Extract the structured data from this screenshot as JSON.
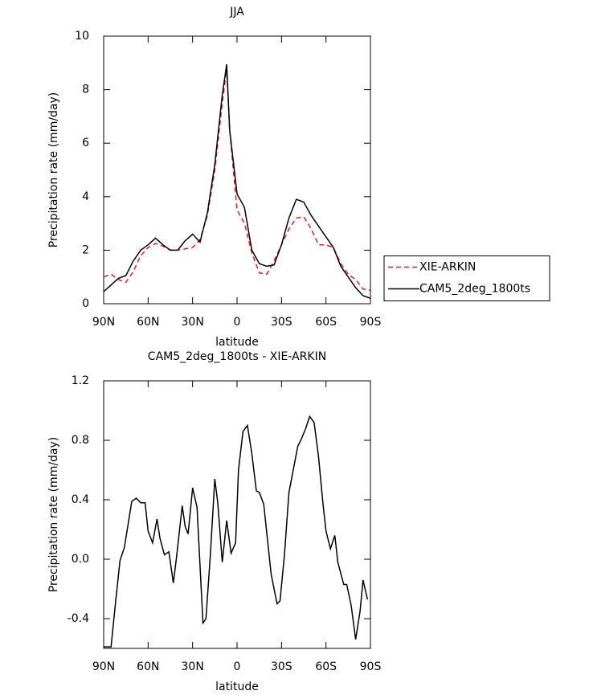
{
  "chart_data": [
    {
      "type": "line",
      "title": "JJA",
      "xlabel": "latitude",
      "ylabel": "Precipitation rate (mm/day)",
      "x": [
        90,
        85,
        80,
        75,
        70,
        65,
        60,
        55,
        50,
        45,
        40,
        35,
        30,
        25,
        20,
        15,
        10,
        7,
        5,
        0,
        -5,
        -10,
        -15,
        -20,
        -25,
        -30,
        -35,
        -40,
        -45,
        -50,
        -55,
        -60,
        -65,
        -70,
        -75,
        -80,
        -85,
        -90
      ],
      "series": [
        {
          "name": "XIE-ARKIN",
          "color": "#e41a1c",
          "dash": "dashed",
          "values": [
            1.0,
            1.1,
            0.9,
            0.8,
            1.2,
            1.8,
            2.1,
            2.25,
            2.15,
            2.0,
            2.0,
            2.05,
            2.1,
            2.4,
            3.3,
            5.0,
            7.5,
            8.8,
            6.5,
            3.5,
            3.0,
            1.9,
            1.15,
            1.1,
            1.6,
            2.2,
            2.8,
            3.2,
            3.25,
            2.8,
            2.2,
            2.2,
            2.1,
            1.5,
            1.1,
            0.9,
            0.55,
            0.5
          ]
        },
        {
          "name": "CAM5_2deg_1800ts",
          "color": "#000000",
          "dash": "solid",
          "values": [
            0.45,
            0.7,
            0.95,
            1.05,
            1.6,
            2.0,
            2.2,
            2.45,
            2.2,
            2.0,
            2.0,
            2.35,
            2.6,
            2.3,
            3.4,
            5.2,
            7.8,
            8.95,
            6.5,
            4.1,
            3.6,
            2.0,
            1.5,
            1.4,
            1.45,
            2.2,
            3.2,
            3.9,
            3.8,
            3.3,
            2.9,
            2.5,
            2.1,
            1.4,
            1.0,
            0.6,
            0.3,
            0.2
          ]
        }
      ],
      "xlim": [
        90,
        -90
      ],
      "xticks": [
        {
          "value": 90,
          "label": "90N"
        },
        {
          "value": 60,
          "label": "60N"
        },
        {
          "value": 30,
          "label": "30N"
        },
        0,
        {
          "value": -30,
          "label": "30S"
        },
        {
          "value": -60,
          "label": "60S"
        },
        {
          "value": -90,
          "label": "90S"
        }
      ],
      "ylim": [
        0,
        10
      ],
      "yticks": [
        0,
        2,
        4,
        6,
        8,
        10
      ],
      "legend": "right"
    },
    {
      "type": "line",
      "title": "CAM5_2deg_1800ts - XIE-ARKIN",
      "xlabel": "latitude",
      "ylabel": "Precipitation rate (mm/day)",
      "x": [
        90,
        85,
        82,
        79,
        76,
        71,
        68,
        65,
        62,
        60,
        57,
        54,
        52,
        49,
        46,
        43,
        41,
        37,
        35,
        33,
        30,
        27,
        23,
        21,
        18,
        15,
        13,
        10,
        7,
        4,
        1,
        -1,
        -4,
        -7,
        -10,
        -13,
        -15,
        -18,
        -21,
        -23,
        -27,
        -29,
        -32,
        -35,
        -41,
        -43,
        -46,
        -49,
        -52,
        -55,
        -58,
        -60,
        -63,
        -66,
        -68,
        -72,
        -74,
        -77,
        -80,
        -83,
        -85,
        -88
      ],
      "series": [
        {
          "name": "CAM5_2deg_1800ts - XIE-ARKIN",
          "color": "#000000",
          "dash": "solid",
          "values": [
            -0.59,
            -0.59,
            -0.29,
            -0.01,
            0.08,
            0.39,
            0.41,
            0.38,
            0.38,
            0.19,
            0.11,
            0.27,
            0.14,
            0.03,
            0.05,
            -0.16,
            0.0,
            0.36,
            0.22,
            0.17,
            0.48,
            0.35,
            -0.43,
            -0.4,
            0.03,
            0.54,
            0.38,
            -0.02,
            0.26,
            0.04,
            0.11,
            0.6,
            0.86,
            0.9,
            0.71,
            0.46,
            0.45,
            0.37,
            0.09,
            -0.1,
            -0.3,
            -0.28,
            0.03,
            0.45,
            0.76,
            0.8,
            0.87,
            0.96,
            0.92,
            0.69,
            0.37,
            0.19,
            0.07,
            0.16,
            -0.02,
            -0.17,
            -0.17,
            -0.31,
            -0.54,
            -0.35,
            -0.14,
            -0.27
          ]
        }
      ],
      "xlim": [
        90,
        -90
      ],
      "xticks": [
        {
          "value": 90,
          "label": "90N"
        },
        {
          "value": 60,
          "label": "60N"
        },
        {
          "value": 30,
          "label": "30N"
        },
        0,
        {
          "value": -30,
          "label": "30S"
        },
        {
          "value": -60,
          "label": "60S"
        },
        {
          "value": -90,
          "label": "90S"
        }
      ],
      "ylim": [
        -0.6,
        1.2
      ],
      "yticks": [
        -0.4,
        {
          "value": 0,
          "label": "0.0"
        },
        0.4,
        0.8,
        1.2
      ]
    }
  ]
}
